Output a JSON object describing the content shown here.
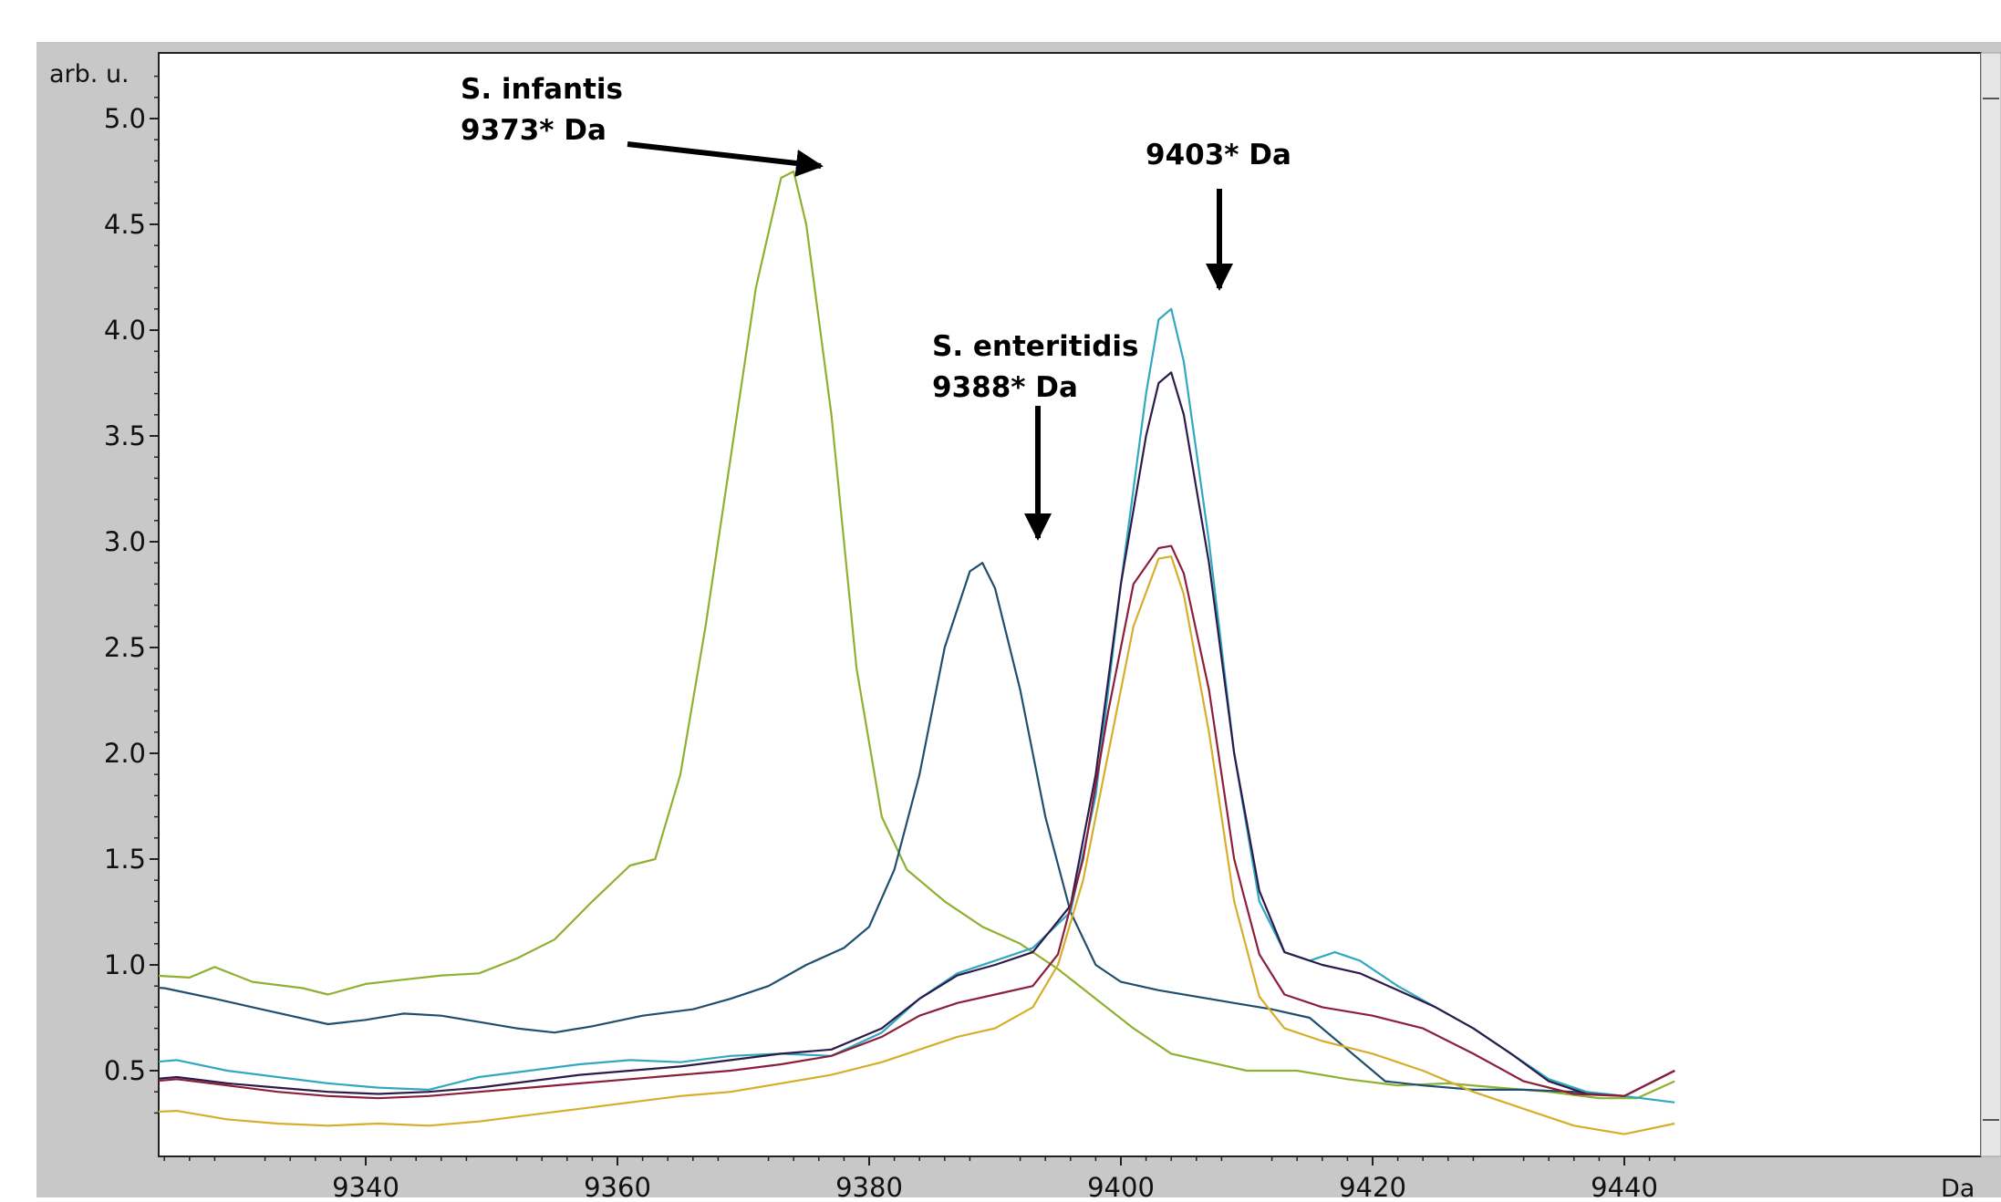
{
  "chart_data": {
    "type": "line",
    "title": "",
    "xlabel": "Da",
    "ylabel": "arb. u.",
    "xlim": [
      9321,
      9444
    ],
    "ylim": [
      0.2,
      5.3
    ],
    "grid": false,
    "x_ticks": [
      9340,
      9360,
      9380,
      9400,
      9420,
      9440
    ],
    "y_ticks": [
      "0.5",
      "1.0",
      "1.5",
      "2.0",
      "2.5",
      "3.0",
      "3.5",
      "4.0",
      "4.5",
      "5.0"
    ],
    "series": [
      {
        "color": "#8fb030",
        "points": [
          [
            9321,
            1.0
          ],
          [
            9323,
            0.95
          ],
          [
            9326,
            0.94
          ],
          [
            9328,
            0.99
          ],
          [
            9331,
            0.92
          ],
          [
            9335,
            0.89
          ],
          [
            9337,
            0.86
          ],
          [
            9340,
            0.91
          ],
          [
            9343,
            0.93
          ],
          [
            9346,
            0.95
          ],
          [
            9349,
            0.96
          ],
          [
            9352,
            1.03
          ],
          [
            9355,
            1.12
          ],
          [
            9358,
            1.3
          ],
          [
            9361,
            1.47
          ],
          [
            9363,
            1.5
          ],
          [
            9365,
            1.9
          ],
          [
            9367,
            2.6
          ],
          [
            9369,
            3.4
          ],
          [
            9371,
            4.2
          ],
          [
            9373,
            4.72
          ],
          [
            9374,
            4.75
          ],
          [
            9375,
            4.5
          ],
          [
            9377,
            3.6
          ],
          [
            9379,
            2.4
          ],
          [
            9381,
            1.7
          ],
          [
            9383,
            1.45
          ],
          [
            9386,
            1.3
          ],
          [
            9389,
            1.18
          ],
          [
            9392,
            1.1
          ],
          [
            9395,
            0.98
          ],
          [
            9398,
            0.84
          ],
          [
            9401,
            0.7
          ],
          [
            9404,
            0.58
          ],
          [
            9407,
            0.54
          ],
          [
            9410,
            0.5
          ],
          [
            9414,
            0.5
          ],
          [
            9418,
            0.46
          ],
          [
            9422,
            0.43
          ],
          [
            9426,
            0.44
          ],
          [
            9430,
            0.42
          ],
          [
            9434,
            0.4
          ],
          [
            9438,
            0.37
          ],
          [
            9441,
            0.37
          ],
          [
            9444,
            0.45
          ]
        ]
      },
      {
        "color": "#1f4e6e",
        "points": [
          [
            9321,
            0.9
          ],
          [
            9324,
            0.89
          ],
          [
            9328,
            0.84
          ],
          [
            9331,
            0.8
          ],
          [
            9334,
            0.76
          ],
          [
            9337,
            0.72
          ],
          [
            9340,
            0.74
          ],
          [
            9343,
            0.77
          ],
          [
            9346,
            0.76
          ],
          [
            9349,
            0.73
          ],
          [
            9352,
            0.7
          ],
          [
            9355,
            0.68
          ],
          [
            9358,
            0.71
          ],
          [
            9362,
            0.76
          ],
          [
            9366,
            0.79
          ],
          [
            9369,
            0.84
          ],
          [
            9372,
            0.9
          ],
          [
            9375,
            1.0
          ],
          [
            9378,
            1.08
          ],
          [
            9380,
            1.18
          ],
          [
            9382,
            1.45
          ],
          [
            9384,
            1.9
          ],
          [
            9386,
            2.5
          ],
          [
            9388,
            2.86
          ],
          [
            9389,
            2.9
          ],
          [
            9390,
            2.78
          ],
          [
            9392,
            2.3
          ],
          [
            9394,
            1.7
          ],
          [
            9396,
            1.25
          ],
          [
            9398,
            1.0
          ],
          [
            9400,
            0.92
          ],
          [
            9403,
            0.88
          ],
          [
            9406,
            0.85
          ],
          [
            9409,
            0.82
          ],
          [
            9412,
            0.79
          ],
          [
            9415,
            0.75
          ],
          [
            9418,
            0.6
          ],
          [
            9421,
            0.45
          ],
          [
            9424,
            0.43
          ],
          [
            9428,
            0.41
          ],
          [
            9432,
            0.41
          ],
          [
            9436,
            0.4
          ],
          [
            9440,
            0.38
          ],
          [
            9444,
            0.5
          ]
        ]
      },
      {
        "color": "#30a8c0",
        "points": [
          [
            9321,
            0.53
          ],
          [
            9325,
            0.55
          ],
          [
            9329,
            0.5
          ],
          [
            9333,
            0.47
          ],
          [
            9337,
            0.44
          ],
          [
            9341,
            0.42
          ],
          [
            9345,
            0.41
          ],
          [
            9349,
            0.47
          ],
          [
            9353,
            0.5
          ],
          [
            9357,
            0.53
          ],
          [
            9361,
            0.55
          ],
          [
            9365,
            0.54
          ],
          [
            9369,
            0.57
          ],
          [
            9373,
            0.58
          ],
          [
            9377,
            0.57
          ],
          [
            9381,
            0.68
          ],
          [
            9384,
            0.84
          ],
          [
            9387,
            0.96
          ],
          [
            9390,
            1.02
          ],
          [
            9393,
            1.08
          ],
          [
            9396,
            1.25
          ],
          [
            9398,
            1.8
          ],
          [
            9400,
            2.8
          ],
          [
            9402,
            3.7
          ],
          [
            9403,
            4.05
          ],
          [
            9404,
            4.1
          ],
          [
            9405,
            3.85
          ],
          [
            9407,
            3.0
          ],
          [
            9409,
            2.0
          ],
          [
            9411,
            1.3
          ],
          [
            9413,
            1.06
          ],
          [
            9415,
            1.02
          ],
          [
            9417,
            1.06
          ],
          [
            9419,
            1.02
          ],
          [
            9422,
            0.9
          ],
          [
            9425,
            0.8
          ],
          [
            9428,
            0.7
          ],
          [
            9431,
            0.58
          ],
          [
            9434,
            0.46
          ],
          [
            9437,
            0.4
          ],
          [
            9440,
            0.38
          ],
          [
            9444,
            0.35
          ]
        ]
      },
      {
        "color": "#2d1a4a",
        "points": [
          [
            9321,
            0.45
          ],
          [
            9325,
            0.47
          ],
          [
            9329,
            0.44
          ],
          [
            9333,
            0.42
          ],
          [
            9337,
            0.4
          ],
          [
            9341,
            0.39
          ],
          [
            9345,
            0.4
          ],
          [
            9349,
            0.42
          ],
          [
            9353,
            0.45
          ],
          [
            9357,
            0.48
          ],
          [
            9361,
            0.5
          ],
          [
            9365,
            0.52
          ],
          [
            9369,
            0.55
          ],
          [
            9373,
            0.58
          ],
          [
            9377,
            0.6
          ],
          [
            9381,
            0.7
          ],
          [
            9384,
            0.84
          ],
          [
            9387,
            0.95
          ],
          [
            9390,
            1.0
          ],
          [
            9393,
            1.06
          ],
          [
            9396,
            1.28
          ],
          [
            9398,
            1.9
          ],
          [
            9400,
            2.8
          ],
          [
            9402,
            3.5
          ],
          [
            9403,
            3.75
          ],
          [
            9404,
            3.8
          ],
          [
            9405,
            3.6
          ],
          [
            9407,
            2.9
          ],
          [
            9409,
            2.0
          ],
          [
            9411,
            1.35
          ],
          [
            9413,
            1.06
          ],
          [
            9416,
            1.0
          ],
          [
            9419,
            0.96
          ],
          [
            9422,
            0.88
          ],
          [
            9425,
            0.8
          ],
          [
            9428,
            0.7
          ],
          [
            9431,
            0.58
          ],
          [
            9434,
            0.45
          ],
          [
            9437,
            0.39
          ],
          [
            9440,
            0.38
          ],
          [
            9444,
            0.5
          ]
        ]
      },
      {
        "color": "#8b1f3a",
        "points": [
          [
            9321,
            0.44
          ],
          [
            9325,
            0.46
          ],
          [
            9329,
            0.43
          ],
          [
            9333,
            0.4
          ],
          [
            9337,
            0.38
          ],
          [
            9341,
            0.37
          ],
          [
            9345,
            0.38
          ],
          [
            9349,
            0.4
          ],
          [
            9353,
            0.42
          ],
          [
            9357,
            0.44
          ],
          [
            9361,
            0.46
          ],
          [
            9365,
            0.48
          ],
          [
            9369,
            0.5
          ],
          [
            9373,
            0.53
          ],
          [
            9377,
            0.57
          ],
          [
            9381,
            0.66
          ],
          [
            9384,
            0.76
          ],
          [
            9387,
            0.82
          ],
          [
            9390,
            0.86
          ],
          [
            9393,
            0.9
          ],
          [
            9395,
            1.05
          ],
          [
            9397,
            1.5
          ],
          [
            9399,
            2.2
          ],
          [
            9401,
            2.8
          ],
          [
            9403,
            2.97
          ],
          [
            9404,
            2.98
          ],
          [
            9405,
            2.85
          ],
          [
            9407,
            2.3
          ],
          [
            9409,
            1.5
          ],
          [
            9411,
            1.05
          ],
          [
            9413,
            0.86
          ],
          [
            9416,
            0.8
          ],
          [
            9420,
            0.76
          ],
          [
            9424,
            0.7
          ],
          [
            9428,
            0.58
          ],
          [
            9432,
            0.45
          ],
          [
            9436,
            0.39
          ],
          [
            9440,
            0.38
          ],
          [
            9444,
            0.5
          ]
        ]
      },
      {
        "color": "#d5ae2a",
        "points": [
          [
            9321,
            0.3
          ],
          [
            9325,
            0.31
          ],
          [
            9329,
            0.27
          ],
          [
            9333,
            0.25
          ],
          [
            9337,
            0.24
          ],
          [
            9341,
            0.25
          ],
          [
            9345,
            0.24
          ],
          [
            9349,
            0.26
          ],
          [
            9353,
            0.29
          ],
          [
            9357,
            0.32
          ],
          [
            9361,
            0.35
          ],
          [
            9365,
            0.38
          ],
          [
            9369,
            0.4
          ],
          [
            9373,
            0.44
          ],
          [
            9377,
            0.48
          ],
          [
            9381,
            0.54
          ],
          [
            9384,
            0.6
          ],
          [
            9387,
            0.66
          ],
          [
            9390,
            0.7
          ],
          [
            9393,
            0.8
          ],
          [
            9395,
            1.0
          ],
          [
            9397,
            1.4
          ],
          [
            9399,
            2.0
          ],
          [
            9401,
            2.6
          ],
          [
            9403,
            2.92
          ],
          [
            9404,
            2.93
          ],
          [
            9405,
            2.75
          ],
          [
            9407,
            2.1
          ],
          [
            9409,
            1.3
          ],
          [
            9411,
            0.85
          ],
          [
            9413,
            0.7
          ],
          [
            9416,
            0.64
          ],
          [
            9420,
            0.58
          ],
          [
            9424,
            0.5
          ],
          [
            9428,
            0.4
          ],
          [
            9432,
            0.32
          ],
          [
            9436,
            0.24
          ],
          [
            9440,
            0.2
          ],
          [
            9444,
            0.25
          ]
        ]
      }
    ],
    "annotations": [
      {
        "lines": [
          "S. infantis",
          "9373* Da"
        ]
      },
      {
        "lines": [
          "S. enteritidis",
          "9388* Da"
        ]
      },
      {
        "lines": [
          "9403* Da"
        ]
      }
    ]
  }
}
